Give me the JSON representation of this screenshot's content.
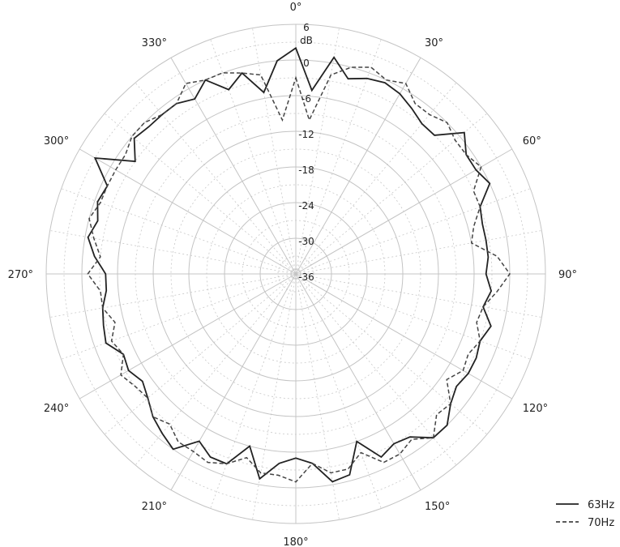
{
  "chart_data": {
    "type": "polar-line",
    "radial_unit_label": "dB",
    "radial_range": [
      -36,
      6
    ],
    "radial_ticks": [
      6,
      0,
      -6,
      -12,
      -18,
      -24,
      -30,
      -36
    ],
    "angle_ticks": [
      0,
      30,
      60,
      90,
      120,
      150,
      180,
      210,
      240,
      270,
      300,
      330
    ],
    "angle_tick_labels": [
      "0°",
      "30°",
      "60°",
      "90°",
      "120°",
      "150°",
      "180°",
      "210°",
      "240°",
      "270°",
      "300°",
      "330°"
    ],
    "direction": "clockwise",
    "zero_at": "top",
    "grid": true,
    "legend_position": "bottom-right",
    "series": [
      {
        "name": "63Hz",
        "style": "solid",
        "color": "#222222",
        "angles": [
          0,
          5,
          10,
          15,
          20,
          25,
          30,
          35,
          40,
          45,
          50,
          55,
          60,
          65,
          70,
          75,
          80,
          85,
          90,
          95,
          100,
          105,
          110,
          115,
          120,
          125,
          130,
          135,
          140,
          145,
          150,
          155,
          160,
          165,
          170,
          175,
          180,
          185,
          190,
          195,
          200,
          205,
          210,
          215,
          220,
          225,
          230,
          235,
          240,
          245,
          250,
          255,
          260,
          265,
          270,
          275,
          280,
          285,
          290,
          295,
          300,
          305,
          310,
          315,
          320,
          325,
          330,
          335,
          340,
          345,
          350,
          355
        ],
        "values": [
          2,
          -5,
          1,
          -2,
          -1,
          -0.5,
          -1,
          -2,
          -3,
          -3,
          1,
          -1,
          -1,
          0,
          -3,
          -3.5,
          -3.5,
          -3.5,
          -4,
          -3,
          -4,
          -2,
          -3,
          -2.5,
          -2.5,
          -3,
          -2,
          0,
          0,
          -2.5,
          -3,
          -2,
          -6,
          -1,
          -0.5,
          -4,
          -5,
          -4,
          -1,
          -6,
          -2,
          -2,
          -3.5,
          0,
          -1,
          -2,
          -3.5,
          -4.5,
          -3.5,
          -4,
          -2,
          -2.5,
          -3,
          -4,
          -4,
          -2,
          -0.5,
          -1.5,
          -0.5,
          -1,
          3,
          -3,
          -0.5,
          -1,
          -1,
          -1,
          -2,
          0,
          -3,
          -1,
          -5,
          0
        ]
      },
      {
        "name": "70Hz",
        "style": "dashed",
        "color": "#444444",
        "angles": [
          0,
          5,
          10,
          15,
          20,
          25,
          30,
          35,
          40,
          45,
          50,
          55,
          60,
          65,
          70,
          75,
          80,
          85,
          90,
          95,
          100,
          105,
          110,
          115,
          120,
          125,
          130,
          135,
          140,
          145,
          150,
          155,
          160,
          165,
          170,
          175,
          180,
          185,
          190,
          195,
          200,
          205,
          210,
          215,
          220,
          225,
          230,
          235,
          240,
          245,
          250,
          255,
          260,
          265,
          270,
          275,
          280,
          285,
          290,
          295,
          300,
          305,
          310,
          315,
          320,
          325,
          330,
          335,
          340,
          345,
          350,
          355
        ],
        "values": [
          -3,
          -10,
          -2,
          0,
          1,
          0,
          1,
          -1,
          -1,
          0,
          -1,
          -1,
          0,
          -3,
          -3,
          -5,
          -6,
          -2,
          0,
          -2,
          -4,
          -4.5,
          -3,
          -4,
          -3.5,
          -5,
          -2,
          -2.5,
          0,
          -2,
          -1,
          -1,
          -4,
          -2,
          -2,
          -4,
          -1,
          -2,
          -2,
          -4,
          -2,
          -1,
          -1.5,
          -1.5,
          -3,
          -2,
          -3.5,
          -3,
          -2,
          -4,
          -3,
          -4.5,
          -3,
          -3,
          -1,
          -3,
          -1.5,
          0,
          -1,
          -1,
          -1,
          -1,
          0,
          0,
          -1,
          -1,
          1,
          0,
          0,
          -1,
          -2,
          -10
        ]
      }
    ]
  }
}
